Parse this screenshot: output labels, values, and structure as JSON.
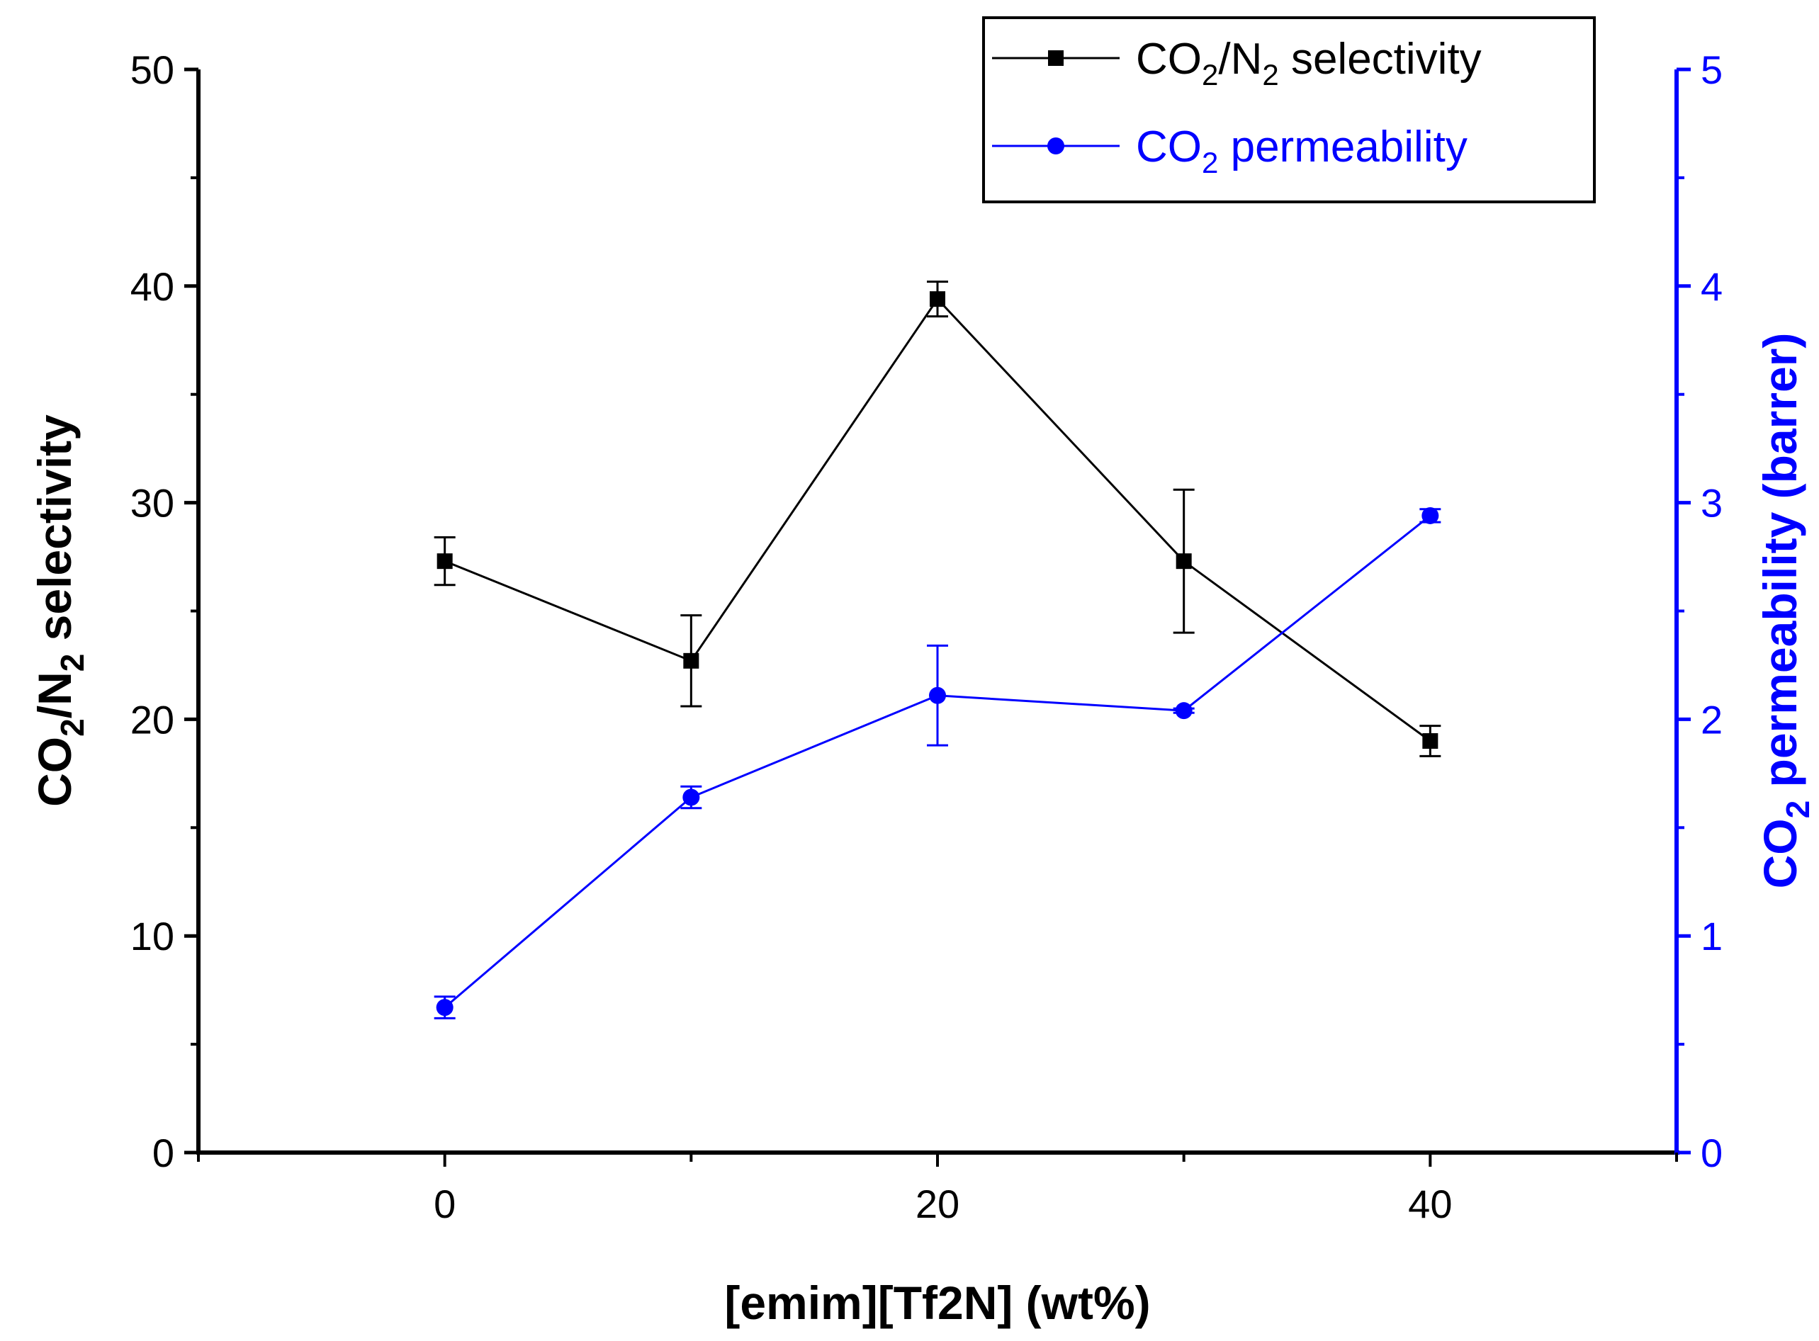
{
  "chart_data": {
    "type": "line",
    "x": [
      0,
      10,
      20,
      30,
      40
    ],
    "xlabel": "[emim][Tf2N] (wt%)",
    "xlim": [
      -10,
      50
    ],
    "x_ticks": [
      0,
      20,
      40
    ],
    "ylabel_left": {
      "pre": "CO",
      "sub1": "2",
      "mid": "/N",
      "sub2": "2",
      "post": " selectivity"
    },
    "ylabel_right": {
      "pre": "CO",
      "sub": "2",
      "post": " permeability (barrer)"
    },
    "ylim_left": [
      0,
      50
    ],
    "ylim_right": [
      0,
      5
    ],
    "y_ticks_left": [
      0,
      10,
      20,
      30,
      40,
      50
    ],
    "y_ticks_right": [
      0,
      1,
      2,
      3,
      4,
      5
    ],
    "legend_position": "top-right",
    "series": [
      {
        "name": "CO2/N2 selectivity",
        "legend": {
          "pre": "CO",
          "sub1": "2",
          "mid": "/N",
          "sub2": "2",
          "post": " selectivity"
        },
        "axis": "left",
        "color": "#000000",
        "marker": "square",
        "values": [
          27.3,
          22.7,
          39.4,
          27.3,
          19.0
        ],
        "errors": [
          1.1,
          2.1,
          0.8,
          3.3,
          0.7
        ]
      },
      {
        "name": "CO2 permeability",
        "legend": {
          "pre": "CO",
          "sub": "2",
          "post": " permeability"
        },
        "axis": "right",
        "color": "#0000ff",
        "marker": "circle",
        "values": [
          0.67,
          1.64,
          2.11,
          2.04,
          2.94
        ],
        "errors": [
          0.05,
          0.05,
          0.23,
          0.01,
          0.03
        ]
      }
    ]
  }
}
